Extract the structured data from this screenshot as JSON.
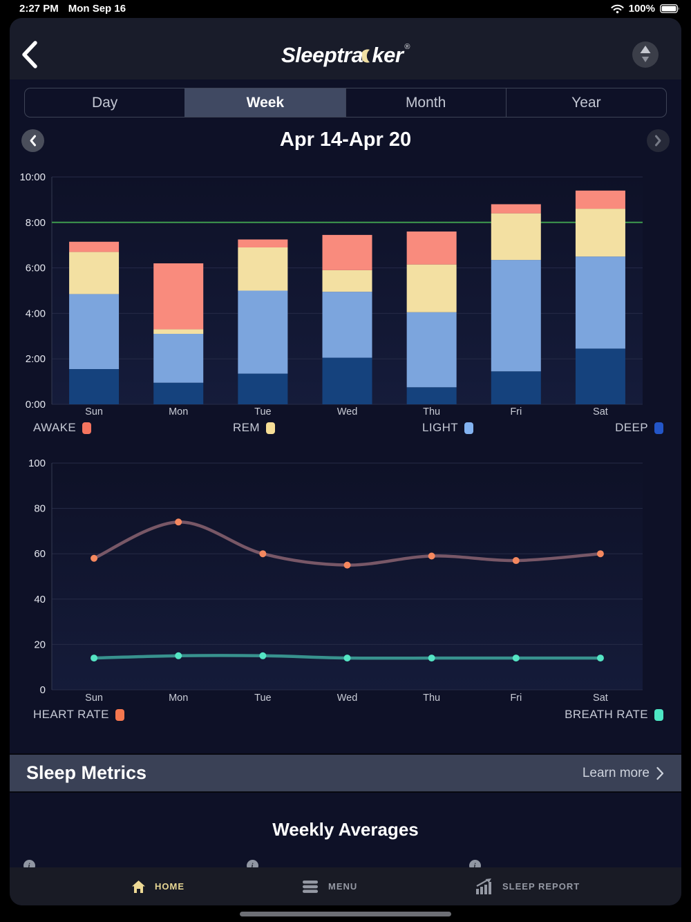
{
  "status_bar": {
    "time": "2:27 PM",
    "date": "Mon Sep 16",
    "battery": "100%"
  },
  "header": {
    "logo_prefix": "Sleeptra",
    "logo_suffix": "ker",
    "logo_registered": "®"
  },
  "tabs": {
    "items": [
      {
        "label": "Day",
        "selected": false
      },
      {
        "label": "Week",
        "selected": true
      },
      {
        "label": "Month",
        "selected": false
      },
      {
        "label": "Year",
        "selected": false
      }
    ]
  },
  "date_nav": {
    "title": "Apr 14-Apr 20"
  },
  "chart_data": [
    {
      "type": "bar",
      "stacked": true,
      "title": "Sleep stages by night",
      "categories": [
        "Sun",
        "Mon",
        "Tue",
        "Wed",
        "Thu",
        "Fri",
        "Sat"
      ],
      "series": [
        {
          "name": "DEEP",
          "color": "#15427D",
          "values": [
            1.55,
            0.95,
            1.35,
            2.05,
            0.75,
            1.45,
            2.45
          ]
        },
        {
          "name": "LIGHT",
          "color": "#7CA5DD",
          "values": [
            3.3,
            2.15,
            3.65,
            2.9,
            3.3,
            4.9,
            4.05
          ]
        },
        {
          "name": "REM",
          "color": "#F3E0A2",
          "values": [
            1.85,
            0.2,
            1.9,
            0.95,
            2.1,
            2.05,
            2.1
          ]
        },
        {
          "name": "AWAKE",
          "color": "#F98B7D",
          "values": [
            0.45,
            2.9,
            0.35,
            1.55,
            1.45,
            0.4,
            0.8
          ]
        }
      ],
      "totals": [
        7.15,
        6.2,
        7.25,
        7.45,
        7.6,
        8.8,
        9.4
      ],
      "ylim": [
        0,
        10
      ],
      "yticks": [
        0,
        2,
        4,
        6,
        8,
        10
      ],
      "ytick_labels": [
        "0:00",
        "2:00",
        "4:00",
        "6:00",
        "8:00",
        "10:00"
      ],
      "goal_line": {
        "value": 8,
        "color": "#3F9B4E"
      },
      "legend": [
        {
          "label": "AWAKE",
          "color": "#F4745F"
        },
        {
          "label": "REM",
          "color": "#F6DE96"
        },
        {
          "label": "LIGHT",
          "color": "#83B3F1"
        },
        {
          "label": "DEEP",
          "color": "#2356C8"
        }
      ],
      "grid": true,
      "legend_position": "bottom"
    },
    {
      "type": "line",
      "title": "Heart rate and breath rate by night",
      "categories": [
        "Sun",
        "Mon",
        "Tue",
        "Wed",
        "Thu",
        "Fri",
        "Sat"
      ],
      "series": [
        {
          "name": "HEART RATE",
          "line_color": "#8B6371",
          "marker_color": "#F5885F",
          "values": [
            58,
            74,
            60,
            55,
            59,
            57,
            60
          ]
        },
        {
          "name": "BREATH RATE",
          "line_color": "#3EA89D",
          "marker_color": "#55E5C4",
          "values": [
            14,
            15,
            15,
            14,
            14,
            14,
            14
          ]
        }
      ],
      "ylim": [
        0,
        100
      ],
      "yticks": [
        0,
        20,
        40,
        60,
        80,
        100
      ],
      "ytick_labels": [
        "0",
        "20",
        "40",
        "60",
        "80",
        "100"
      ],
      "legend": [
        {
          "label": "HEART RATE",
          "color": "#F5774F"
        },
        {
          "label": "BREATH RATE",
          "color": "#4DE6C4"
        }
      ],
      "grid": true,
      "legend_position": "bottom"
    }
  ],
  "sleep_metrics": {
    "title": "Sleep Metrics",
    "link": "Learn more"
  },
  "weekly_averages": {
    "title": "Weekly Averages",
    "info_icon_glyph": "i",
    "info_icon_count": 3
  },
  "bottom_nav": {
    "items": [
      {
        "label": "HOME",
        "icon": "home-icon",
        "active": true
      },
      {
        "label": "MENU",
        "icon": "menu-icon",
        "active": false
      },
      {
        "label": "SLEEP REPORT",
        "icon": "sleep-report-icon",
        "active": false
      }
    ]
  },
  "colors": {
    "panel_bg": "#0e1127",
    "header_bg": "#191c2a",
    "selected_tab_bg": "#404962",
    "goal_line": "#3F9B4E",
    "metrics_bar_bg": "#3a4156",
    "active_nav": "#e8d794",
    "gridline": "#262b47",
    "axis_line": "#343a52"
  }
}
